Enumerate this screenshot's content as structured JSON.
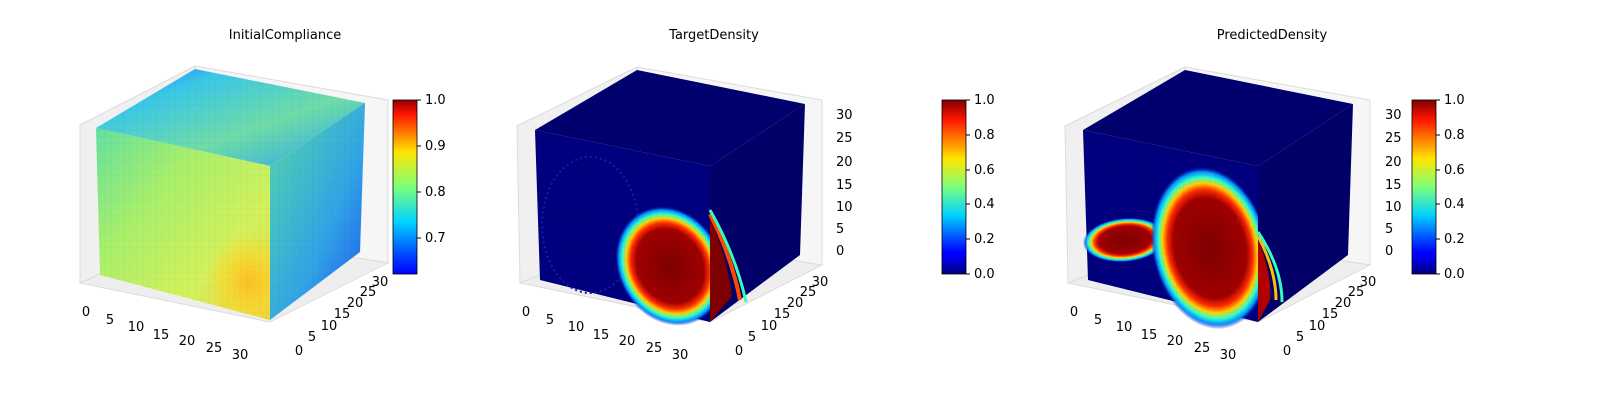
{
  "chart_data": [
    {
      "type": "voxel-3d",
      "title": "InitialCompliance",
      "x_ticks": [
        "0",
        "5",
        "10",
        "15",
        "20",
        "25",
        "30"
      ],
      "y_ticks": [
        "0",
        "5",
        "10",
        "15",
        "20",
        "25",
        "30"
      ],
      "z_ticks": [],
      "z_ticks_shown": false,
      "grid_size": [
        32,
        32,
        32
      ],
      "colormap": "jet",
      "colorbar": {
        "min": 0.63,
        "max": 1.0,
        "ticks": [
          "0.7",
          "0.8",
          "0.9",
          "1.0"
        ]
      }
    },
    {
      "type": "voxel-3d",
      "title": "TargetDensity",
      "x_ticks": [
        "0",
        "5",
        "10",
        "15",
        "20",
        "25",
        "30"
      ],
      "y_ticks": [
        "0",
        "5",
        "10",
        "15",
        "20",
        "25",
        "30"
      ],
      "z_ticks": [
        "0",
        "5",
        "10",
        "15",
        "20",
        "25",
        "30"
      ],
      "z_ticks_shown": true,
      "grid_size": [
        32,
        32,
        32
      ],
      "colormap": "jet",
      "colorbar": {
        "min": 0.0,
        "max": 1.0,
        "ticks": [
          "0.0",
          "0.2",
          "0.4",
          "0.6",
          "0.8",
          "1.0"
        ]
      }
    },
    {
      "type": "voxel-3d",
      "title": "PredictedDensity",
      "x_ticks": [
        "0",
        "5",
        "10",
        "15",
        "20",
        "25",
        "30"
      ],
      "y_ticks": [
        "0",
        "5",
        "10",
        "15",
        "20",
        "25",
        "30"
      ],
      "z_ticks": [
        "0",
        "5",
        "10",
        "15",
        "20",
        "25",
        "30"
      ],
      "z_ticks_shown": true,
      "grid_size": [
        32,
        32,
        32
      ],
      "colormap": "jet",
      "colorbar": {
        "min": 0.0,
        "max": 1.0,
        "ticks": [
          "0.0",
          "0.2",
          "0.4",
          "0.6",
          "0.8",
          "1.0"
        ]
      }
    }
  ]
}
